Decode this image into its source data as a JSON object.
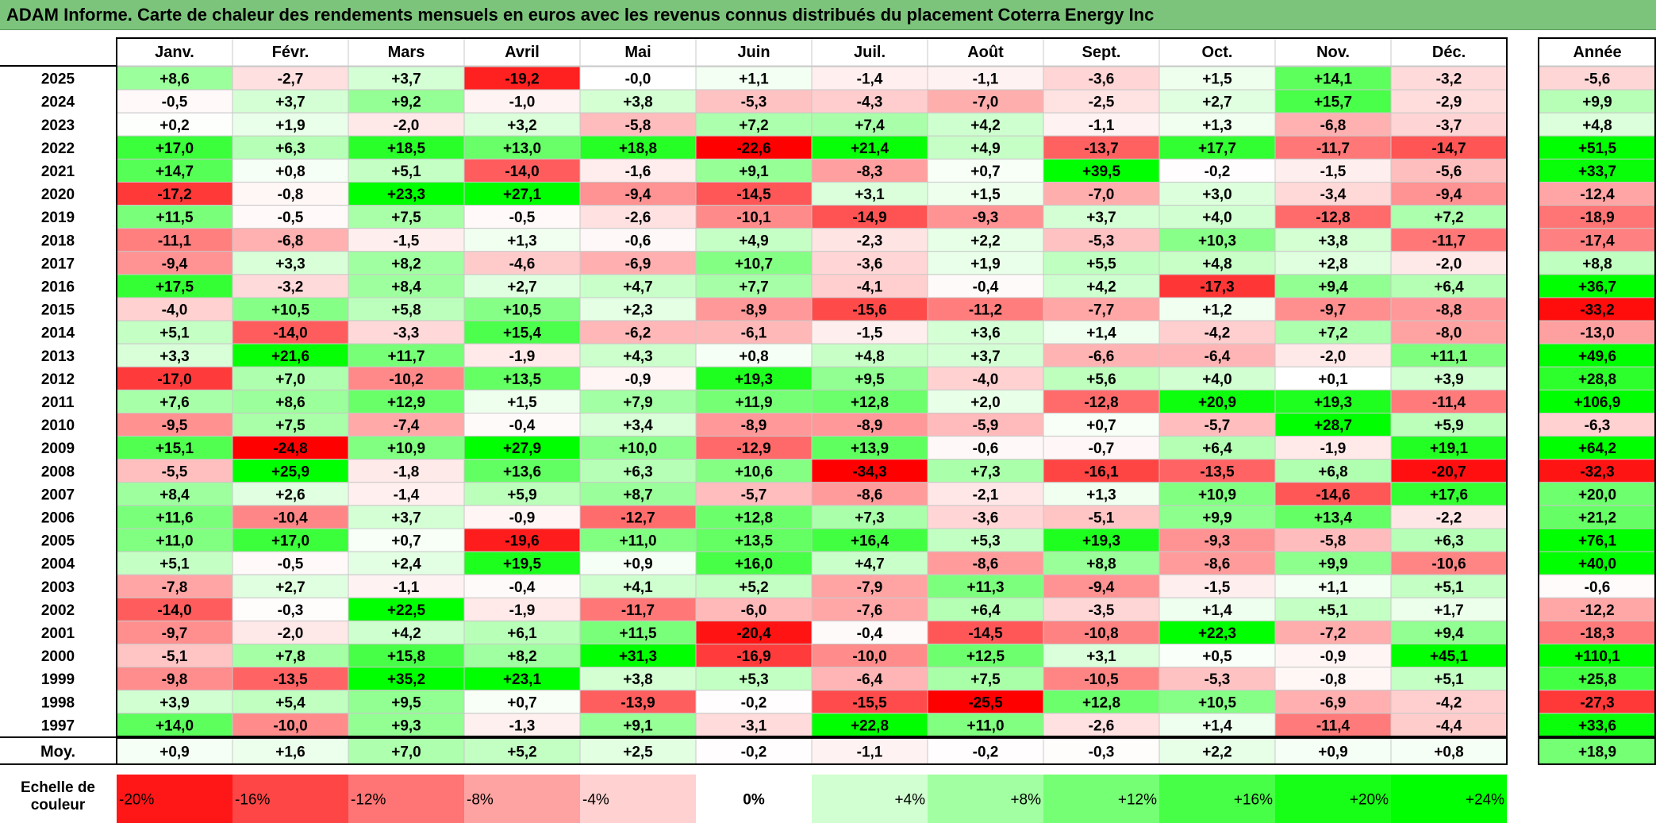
{
  "title": "ADAM Informe. Carte de chaleur des rendements mensuels en euros avec les revenus connus distribués du placement Coterra Energy Inc",
  "chart_data": {
    "type": "heatmap",
    "columns": [
      "Janv.",
      "Févr.",
      "Mars",
      "Avril",
      "Mai",
      "Juin",
      "Juil.",
      "Août",
      "Sept.",
      "Oct.",
      "Nov.",
      "Déc."
    ],
    "year_header": "Année",
    "rows": [
      {
        "year": "2025",
        "months": [
          "+8,6",
          "-2,7",
          "+3,7",
          "-19,2",
          "-0,0",
          "+1,1",
          "-1,4",
          "-1,1",
          "-3,6",
          "+1,5",
          "+14,1",
          "-3,2"
        ],
        "annual": "-5,6"
      },
      {
        "year": "2024",
        "months": [
          "-0,5",
          "+3,7",
          "+9,2",
          "-1,0",
          "+3,8",
          "-5,3",
          "-4,3",
          "-7,0",
          "-2,5",
          "+2,7",
          "+15,7",
          "-2,9"
        ],
        "annual": "+9,9"
      },
      {
        "year": "2023",
        "months": [
          "+0,2",
          "+1,9",
          "-2,0",
          "+3,2",
          "-5,8",
          "+7,2",
          "+7,4",
          "+4,2",
          "-1,1",
          "+1,3",
          "-6,8",
          "-3,7"
        ],
        "annual": "+4,8"
      },
      {
        "year": "2022",
        "months": [
          "+17,0",
          "+6,3",
          "+18,5",
          "+13,0",
          "+18,8",
          "-22,6",
          "+21,4",
          "+4,9",
          "-13,7",
          "+17,7",
          "-11,7",
          "-14,7"
        ],
        "annual": "+51,5"
      },
      {
        "year": "2021",
        "months": [
          "+14,7",
          "+0,8",
          "+5,1",
          "-14,0",
          "-1,6",
          "+9,1",
          "-8,3",
          "+0,7",
          "+39,5",
          "-0,2",
          "-1,5",
          "-5,6"
        ],
        "annual": "+33,7"
      },
      {
        "year": "2020",
        "months": [
          "-17,2",
          "-0,8",
          "+23,3",
          "+27,1",
          "-9,4",
          "-14,5",
          "+3,1",
          "+1,5",
          "-7,0",
          "+3,0",
          "-3,4",
          "-9,4"
        ],
        "annual": "-12,4"
      },
      {
        "year": "2019",
        "months": [
          "+11,5",
          "-0,5",
          "+7,5",
          "-0,5",
          "-2,6",
          "-10,1",
          "-14,9",
          "-9,3",
          "+3,7",
          "+4,0",
          "-12,8",
          "+7,2"
        ],
        "annual": "-18,9"
      },
      {
        "year": "2018",
        "months": [
          "-11,1",
          "-6,8",
          "-1,5",
          "+1,3",
          "-0,6",
          "+4,9",
          "-2,3",
          "+2,2",
          "-5,3",
          "+10,3",
          "+3,8",
          "-11,7"
        ],
        "annual": "-17,4"
      },
      {
        "year": "2017",
        "months": [
          "-9,4",
          "+3,3",
          "+8,2",
          "-4,6",
          "-6,9",
          "+10,7",
          "-3,6",
          "+1,9",
          "+5,5",
          "+4,8",
          "+2,8",
          "-2,0"
        ],
        "annual": "+8,8"
      },
      {
        "year": "2016",
        "months": [
          "+17,5",
          "-3,2",
          "+8,4",
          "+2,7",
          "+4,7",
          "+7,7",
          "-4,1",
          "-0,4",
          "+4,2",
          "-17,3",
          "+9,4",
          "+6,4"
        ],
        "annual": "+36,7"
      },
      {
        "year": "2015",
        "months": [
          "-4,0",
          "+10,5",
          "+5,8",
          "+10,5",
          "+2,3",
          "-8,9",
          "-15,6",
          "-11,2",
          "-7,7",
          "+1,2",
          "-9,7",
          "-8,8"
        ],
        "annual": "-33,2"
      },
      {
        "year": "2014",
        "months": [
          "+5,1",
          "-14,0",
          "-3,3",
          "+15,4",
          "-6,2",
          "-6,1",
          "-1,5",
          "+3,6",
          "+1,4",
          "-4,2",
          "+7,2",
          "-8,0"
        ],
        "annual": "-13,0"
      },
      {
        "year": "2013",
        "months": [
          "+3,3",
          "+21,6",
          "+11,7",
          "-1,9",
          "+4,3",
          "+0,8",
          "+4,8",
          "+3,7",
          "-6,6",
          "-6,4",
          "-2,0",
          "+11,1"
        ],
        "annual": "+49,6"
      },
      {
        "year": "2012",
        "months": [
          "-17,0",
          "+7,0",
          "-10,2",
          "+13,5",
          "-0,9",
          "+19,3",
          "+9,5",
          "-4,0",
          "+5,6",
          "+4,0",
          "+0,1",
          "+3,9"
        ],
        "annual": "+28,8"
      },
      {
        "year": "2011",
        "months": [
          "+7,6",
          "+8,6",
          "+12,9",
          "+1,5",
          "+7,9",
          "+11,9",
          "+12,8",
          "+2,0",
          "-12,8",
          "+20,9",
          "+19,3",
          "-11,4"
        ],
        "annual": "+106,9"
      },
      {
        "year": "2010",
        "months": [
          "-9,5",
          "+7,5",
          "-7,4",
          "-0,4",
          "+3,4",
          "-8,9",
          "-8,9",
          "-5,9",
          "+0,7",
          "-5,7",
          "+28,7",
          "+5,9"
        ],
        "annual": "-6,3"
      },
      {
        "year": "2009",
        "months": [
          "+15,1",
          "-24,8",
          "+10,9",
          "+27,9",
          "+10,0",
          "-12,9",
          "+13,9",
          "-0,6",
          "-0,7",
          "+6,4",
          "-1,9",
          "+19,1"
        ],
        "annual": "+64,2"
      },
      {
        "year": "2008",
        "months": [
          "-5,5",
          "+25,9",
          "-1,8",
          "+13,6",
          "+6,3",
          "+10,6",
          "-34,3",
          "+7,3",
          "-16,1",
          "-13,5",
          "+6,8",
          "-20,7"
        ],
        "annual": "-32,3"
      },
      {
        "year": "2007",
        "months": [
          "+8,4",
          "+2,6",
          "-1,4",
          "+5,9",
          "+8,7",
          "-5,7",
          "-8,6",
          "-2,1",
          "+1,3",
          "+10,9",
          "-14,6",
          "+17,6"
        ],
        "annual": "+20,0"
      },
      {
        "year": "2006",
        "months": [
          "+11,6",
          "-10,4",
          "+3,7",
          "-0,9",
          "-12,7",
          "+12,8",
          "+7,3",
          "-3,6",
          "-5,1",
          "+9,9",
          "+13,4",
          "-2,2"
        ],
        "annual": "+21,2"
      },
      {
        "year": "2005",
        "months": [
          "+11,0",
          "+17,0",
          "+0,7",
          "-19,6",
          "+11,0",
          "+13,5",
          "+16,4",
          "+5,3",
          "+19,3",
          "-9,3",
          "-5,8",
          "+6,3"
        ],
        "annual": "+76,1"
      },
      {
        "year": "2004",
        "months": [
          "+5,1",
          "-0,5",
          "+2,4",
          "+19,5",
          "+0,9",
          "+16,0",
          "+4,7",
          "-8,6",
          "+8,8",
          "-8,6",
          "+9,9",
          "-10,6"
        ],
        "annual": "+40,0"
      },
      {
        "year": "2003",
        "months": [
          "-7,8",
          "+2,7",
          "-1,1",
          "-0,4",
          "+4,1",
          "+5,2",
          "-7,9",
          "+11,3",
          "-9,4",
          "-1,5",
          "+1,1",
          "+5,1"
        ],
        "annual": "-0,6"
      },
      {
        "year": "2002",
        "months": [
          "-14,0",
          "-0,3",
          "+22,5",
          "-1,9",
          "-11,7",
          "-6,0",
          "-7,6",
          "+6,4",
          "-3,5",
          "+1,4",
          "+5,1",
          "+1,7"
        ],
        "annual": "-12,2"
      },
      {
        "year": "2001",
        "months": [
          "-9,7",
          "-2,0",
          "+4,2",
          "+6,1",
          "+11,5",
          "-20,4",
          "-0,4",
          "-14,5",
          "-10,8",
          "+22,3",
          "-7,2",
          "+9,4"
        ],
        "annual": "-18,3"
      },
      {
        "year": "2000",
        "months": [
          "-5,1",
          "+7,8",
          "+15,8",
          "+8,2",
          "+31,3",
          "-16,9",
          "-10,0",
          "+12,5",
          "+3,1",
          "+0,5",
          "-0,9",
          "+45,1"
        ],
        "annual": "+110,1"
      },
      {
        "year": "1999",
        "months": [
          "-9,8",
          "-13,5",
          "+35,2",
          "+23,1",
          "+3,8",
          "+5,3",
          "-6,4",
          "+7,5",
          "-10,5",
          "-5,3",
          "-0,8",
          "+5,1"
        ],
        "annual": "+25,8"
      },
      {
        "year": "1998",
        "months": [
          "+3,9",
          "+5,4",
          "+9,5",
          "+0,7",
          "-13,9",
          "-0,2",
          "-15,5",
          "-25,5",
          "+12,8",
          "+10,5",
          "-6,9",
          "-4,2"
        ],
        "annual": "-27,3"
      },
      {
        "year": "1997",
        "months": [
          "+14,0",
          "-10,0",
          "+9,3",
          "-1,3",
          "+9,1",
          "-3,1",
          "+22,8",
          "+11,0",
          "-2,6",
          "+1,4",
          "-11,4",
          "-4,4"
        ],
        "annual": "+33,6"
      }
    ],
    "average": {
      "label": "Moy.",
      "months": [
        "+0,9",
        "+1,6",
        "+7,0",
        "+5,2",
        "+2,5",
        "-0,2",
        "-1,1",
        "-0,2",
        "-0,3",
        "+2,2",
        "+0,9",
        "+0,8"
      ],
      "annual": "+18,9"
    },
    "scale": {
      "label_line1": "Echelle de",
      "label_line2": "couleur",
      "stops": [
        "-20%",
        "-16%",
        "-12%",
        "-8%",
        "-4%",
        "0%",
        "+4%",
        "+8%",
        "+12%",
        "+16%",
        "+20%",
        "+24%"
      ],
      "stop_values": [
        -20,
        -16,
        -12,
        -8,
        -4,
        0,
        4,
        8,
        12,
        16,
        20,
        24
      ]
    },
    "colors": {
      "negative_max": "#ff0000",
      "neutral": "#ffffff",
      "positive_max": "#00ff00",
      "title_bar": "#7cc47c"
    }
  }
}
